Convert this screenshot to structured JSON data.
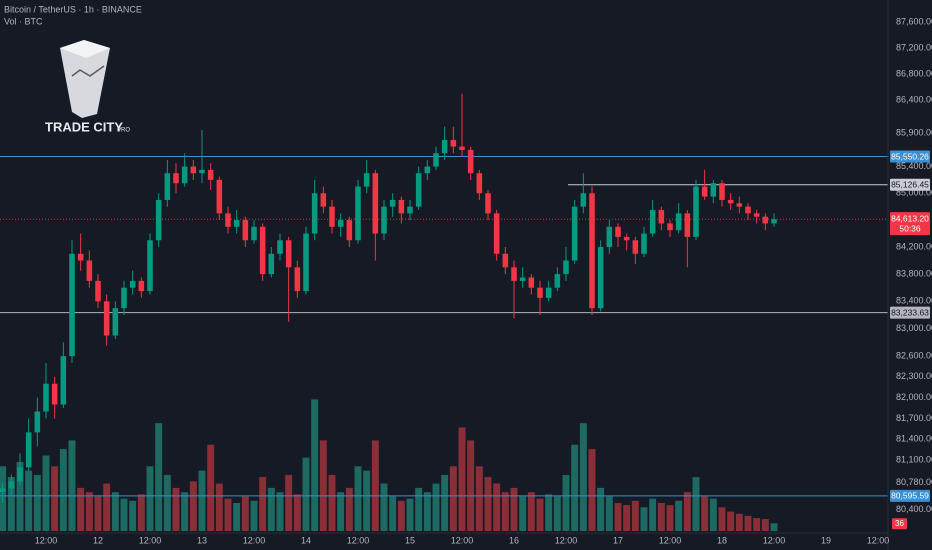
{
  "chart_data": {
    "type": "candlestick",
    "title": "Bitcoin / TetherUS · 1h · BINANCE",
    "subtitle": "Vol · BTC",
    "brand": "TRADE CITY",
    "brand_suffix": "PRO",
    "log_scale": true,
    "grid": false,
    "up_color": "#089981",
    "down_color": "#f23645",
    "up_volume_color": "#1d6a62",
    "down_volume_color": "#8a2e37",
    "ylim": [
      80000,
      88000
    ],
    "volume_lim": [
      0,
      700
    ],
    "yticks": [
      {
        "value": 87600,
        "label": "87,600.00"
      },
      {
        "value": 87200,
        "label": "87,200.00"
      },
      {
        "value": 86800,
        "label": "86,800.00"
      },
      {
        "value": 86400,
        "label": "86,400.00"
      },
      {
        "value": 85900,
        "label": "85,900.00"
      },
      {
        "value": 85400,
        "label": "85,400.00"
      },
      {
        "value": 85000,
        "label": "85,000.00"
      },
      {
        "value": 84200,
        "label": "84,200.00"
      },
      {
        "value": 83800,
        "label": "83,800.00"
      },
      {
        "value": 83400,
        "label": "83,400.00"
      },
      {
        "value": 83000,
        "label": "83,000.00"
      },
      {
        "value": 82600,
        "label": "82,600.00"
      },
      {
        "value": 82300,
        "label": "82,300.00"
      },
      {
        "value": 82000,
        "label": "82,000.00"
      },
      {
        "value": 81700,
        "label": "81,700.00"
      },
      {
        "value": 81400,
        "label": "81,400.00"
      },
      {
        "value": 81100,
        "label": "81,100.00"
      },
      {
        "value": 80780,
        "label": "80,780.00"
      },
      {
        "value": 80400,
        "label": "80,400.00"
      }
    ],
    "levels": [
      {
        "value": 85550.26,
        "label": "85,550.26",
        "color": "#3b8fd4"
      },
      {
        "value": 85126.45,
        "label": "85,126.45",
        "color": "#c9ccd4"
      },
      {
        "value": 83233.63,
        "label": "83,233.63",
        "color": "#b2b5be"
      },
      {
        "value": 80595.59,
        "label": "80,595.59",
        "color": "#3b8fd4"
      }
    ],
    "last_price": {
      "value": 84613.2,
      "label": "84,613.20",
      "countdown": "50:36",
      "color": "#f23645"
    },
    "categories": [
      null,
      null,
      null,
      null,
      null,
      "12:00",
      null,
      null,
      null,
      null,
      null,
      "12",
      null,
      null,
      null,
      null,
      null,
      "12:00",
      null,
      null,
      null,
      null,
      null,
      "13",
      null,
      null,
      null,
      null,
      null,
      "12:00",
      null,
      null,
      null,
      null,
      null,
      "14",
      null,
      null,
      null,
      null,
      null,
      "12:00",
      null,
      null,
      null,
      null,
      null,
      "15",
      null,
      null,
      null,
      null,
      null,
      "12:00",
      null,
      null,
      null,
      null,
      null,
      "16",
      null,
      null,
      null,
      null,
      null,
      "12:00",
      null,
      null,
      null,
      null,
      null,
      "17",
      null,
      null,
      null,
      null,
      null,
      "12:00",
      null,
      null,
      null,
      null,
      null,
      "18",
      null,
      null,
      null,
      null,
      null,
      "12:00",
      null,
      null,
      null,
      null,
      null,
      "19",
      null,
      null,
      null,
      null,
      null,
      "12:00"
    ],
    "ohlc": [
      [
        80650,
        80780,
        80500,
        80700
      ],
      [
        80700,
        80900,
        80600,
        80800
      ],
      [
        80800,
        81200,
        80750,
        81000
      ],
      [
        81000,
        81700,
        80950,
        81500
      ],
      [
        81500,
        82000,
        81300,
        81800
      ],
      [
        81800,
        82500,
        81700,
        82200
      ],
      [
        82200,
        82300,
        81700,
        81900
      ],
      [
        81900,
        82800,
        81850,
        82600
      ],
      [
        82600,
        84300,
        82500,
        84100
      ],
      [
        84100,
        84400,
        83850,
        84000
      ],
      [
        84000,
        84150,
        83600,
        83700
      ],
      [
        83700,
        83800,
        83300,
        83400
      ],
      [
        83400,
        83500,
        82750,
        82900
      ],
      [
        82900,
        83400,
        82850,
        83300
      ],
      [
        83300,
        83700,
        83200,
        83600
      ],
      [
        83600,
        83850,
        83500,
        83700
      ],
      [
        83700,
        83750,
        83450,
        83550
      ],
      [
        83550,
        84400,
        83500,
        84300
      ],
      [
        84300,
        85000,
        84200,
        84900
      ],
      [
        84900,
        85500,
        84800,
        85300
      ],
      [
        85300,
        85450,
        85000,
        85150
      ],
      [
        85150,
        85600,
        85100,
        85400
      ],
      [
        85400,
        85500,
        85200,
        85300
      ],
      [
        85300,
        85950,
        85150,
        85350
      ],
      [
        85350,
        85450,
        85050,
        85200
      ],
      [
        85200,
        85250,
        84600,
        84700
      ],
      [
        84700,
        84800,
        84400,
        84500
      ],
      [
        84500,
        84750,
        84400,
        84600
      ],
      [
        84600,
        84650,
        84200,
        84300
      ],
      [
        84300,
        84600,
        84250,
        84500
      ],
      [
        84500,
        84550,
        83700,
        83800
      ],
      [
        83800,
        84200,
        83750,
        84100
      ],
      [
        84100,
        84400,
        84000,
        84300
      ],
      [
        84300,
        84350,
        83100,
        83900
      ],
      [
        83900,
        84000,
        83450,
        83550
      ],
      [
        83550,
        84500,
        83500,
        84400
      ],
      [
        84400,
        85200,
        84300,
        85000
      ],
      [
        85000,
        85100,
        84700,
        84800
      ],
      [
        84800,
        84900,
        84400,
        84500
      ],
      [
        84500,
        84700,
        84350,
        84600
      ],
      [
        84600,
        84650,
        84200,
        84300
      ],
      [
        84300,
        85200,
        84250,
        85100
      ],
      [
        85100,
        85500,
        85000,
        85300
      ],
      [
        85300,
        85350,
        84000,
        84400
      ],
      [
        84400,
        84900,
        84300,
        84800
      ],
      [
        84800,
        85000,
        84650,
        84900
      ],
      [
        84900,
        84950,
        84550,
        84700
      ],
      [
        84700,
        84900,
        84600,
        84800
      ],
      [
        84800,
        85400,
        84750,
        85300
      ],
      [
        85300,
        85500,
        85200,
        85400
      ],
      [
        85400,
        85700,
        85350,
        85600
      ],
      [
        85600,
        86000,
        85500,
        85800
      ],
      [
        85800,
        86000,
        85600,
        85700
      ],
      [
        85700,
        86500,
        85550,
        85650
      ],
      [
        85650,
        85700,
        85200,
        85300
      ],
      [
        85300,
        85350,
        84900,
        85000
      ],
      [
        85000,
        85050,
        84600,
        84700
      ],
      [
        84700,
        84750,
        84000,
        84100
      ],
      [
        84100,
        84200,
        83800,
        83900
      ],
      [
        83900,
        84000,
        83150,
        83700
      ],
      [
        83700,
        83900,
        83600,
        83750
      ],
      [
        83750,
        83800,
        83500,
        83600
      ],
      [
        83600,
        83700,
        83200,
        83450
      ],
      [
        83450,
        83700,
        83400,
        83600
      ],
      [
        83600,
        83900,
        83550,
        83800
      ],
      [
        83800,
        84200,
        83700,
        84000
      ],
      [
        84000,
        84900,
        83950,
        84800
      ],
      [
        84800,
        85300,
        84700,
        85000
      ],
      [
        85000,
        85100,
        83200,
        83300
      ],
      [
        83300,
        84300,
        83250,
        84200
      ],
      [
        84200,
        84600,
        84100,
        84500
      ],
      [
        84500,
        84550,
        84200,
        84350
      ],
      [
        84350,
        84400,
        84150,
        84300
      ],
      [
        84300,
        84350,
        83950,
        84100
      ],
      [
        84100,
        84500,
        84050,
        84400
      ],
      [
        84400,
        84900,
        84350,
        84750
      ],
      [
        84750,
        84800,
        84450,
        84550
      ],
      [
        84550,
        84600,
        84350,
        84450
      ],
      [
        84450,
        84850,
        84400,
        84700
      ],
      [
        84700,
        84750,
        83900,
        84350
      ],
      [
        84350,
        85200,
        84300,
        85100
      ],
      [
        85100,
        85350,
        84900,
        84950
      ],
      [
        84950,
        85200,
        84850,
        85150
      ],
      [
        85150,
        85200,
        84800,
        84900
      ],
      [
        84900,
        85000,
        84750,
        84850
      ],
      [
        84850,
        84950,
        84700,
        84800
      ],
      [
        84800,
        84850,
        84600,
        84700
      ],
      [
        84700,
        84750,
        84550,
        84650
      ],
      [
        84650,
        84700,
        84450,
        84550
      ],
      [
        84550,
        84700,
        84500,
        84613.2
      ],
      null,
      null,
      null,
      null,
      null,
      null,
      null,
      null,
      null,
      null,
      null,
      null
    ],
    "volume": [
      300,
      250,
      320,
      280,
      260,
      350,
      300,
      380,
      420,
      200,
      180,
      160,
      220,
      180,
      150,
      140,
      170,
      300,
      500,
      260,
      200,
      180,
      230,
      280,
      400,
      220,
      150,
      130,
      160,
      140,
      250,
      200,
      180,
      260,
      170,
      340,
      610,
      420,
      260,
      180,
      200,
      300,
      280,
      420,
      220,
      160,
      140,
      150,
      200,
      180,
      220,
      260,
      300,
      480,
      420,
      300,
      250,
      220,
      180,
      200,
      160,
      180,
      150,
      170,
      160,
      260,
      400,
      500,
      380,
      200,
      160,
      130,
      120,
      140,
      110,
      150,
      130,
      120,
      140,
      180,
      250,
      160,
      150,
      110,
      90,
      80,
      70,
      60,
      55,
      36,
      null,
      null,
      null,
      null,
      null,
      null,
      null,
      null,
      null,
      null,
      null,
      null
    ]
  }
}
